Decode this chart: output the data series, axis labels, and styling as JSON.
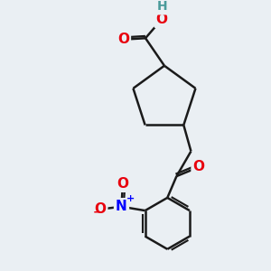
{
  "background_color": "#eaeff3",
  "bond_color": "#1a1a1a",
  "bond_width": 1.8,
  "atom_colors": {
    "O": "#e8000d",
    "N": "#0000ff",
    "H": "#4a9a9a",
    "C": "#1a1a1a"
  },
  "font_size": 11,
  "fig_size": [
    3.0,
    3.0
  ],
  "dpi": 100
}
